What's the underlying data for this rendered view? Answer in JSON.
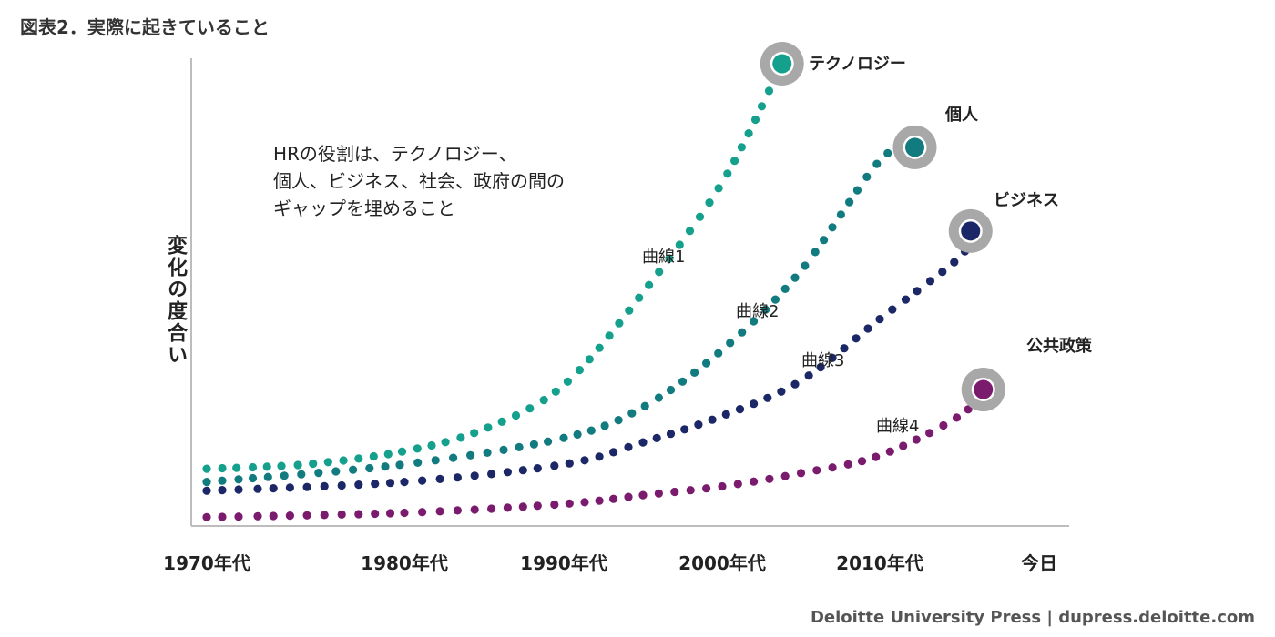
{
  "title": "図表2．実際に起きていること",
  "note_lines": [
    "HRの役割は、テクノロジー、",
    "個人、ビジネス、社会、政府の間の",
    "ギャップを埋めること"
  ],
  "footer": "Deloitte University Press  |  dupress.deloitte.com",
  "chart_data": {
    "type": "line",
    "ylabel": "変化の度合い",
    "xlabel": "",
    "x_ticks": [
      "1970年代",
      "1980年代",
      "1990年代",
      "2000年代",
      "2010年代",
      "今日"
    ],
    "grid": false,
    "series": [
      {
        "name": "曲線1",
        "end_label": "テクノロジー",
        "color": "#14a08c",
        "points": [
          [
            0,
            8
          ],
          [
            0.5,
            9
          ],
          [
            1.0,
            12
          ],
          [
            1.5,
            17
          ],
          [
            2.0,
            27
          ],
          [
            2.5,
            48
          ],
          [
            3.0,
            73
          ],
          [
            3.38,
            100
          ]
        ]
      },
      {
        "name": "曲線2",
        "end_label": "個人",
        "color": "#127b80",
        "points": [
          [
            0,
            5
          ],
          [
            1.0,
            9
          ],
          [
            2.0,
            15
          ],
          [
            2.5,
            22
          ],
          [
            3.0,
            35
          ],
          [
            3.5,
            53
          ],
          [
            4.0,
            78
          ],
          [
            4.22,
            81
          ]
        ]
      },
      {
        "name": "曲線3",
        "end_label": "ビジネス",
        "color": "#1b2766",
        "points": [
          [
            0,
            3
          ],
          [
            1.0,
            5
          ],
          [
            2.0,
            9
          ],
          [
            2.5,
            14
          ],
          [
            3.0,
            20
          ],
          [
            3.5,
            28
          ],
          [
            4.0,
            42
          ],
          [
            4.5,
            56
          ],
          [
            4.57,
            62
          ]
        ]
      },
      {
        "name": "曲線4",
        "end_label": "公共政策",
        "color": "#7a1b6e",
        "points": [
          [
            0,
            -3
          ],
          [
            1.0,
            -2
          ],
          [
            2.0,
            0
          ],
          [
            2.5,
            2
          ],
          [
            3.0,
            4
          ],
          [
            3.5,
            7
          ],
          [
            4.0,
            11
          ],
          [
            4.5,
            20
          ],
          [
            4.65,
            26
          ]
        ]
      }
    ]
  }
}
